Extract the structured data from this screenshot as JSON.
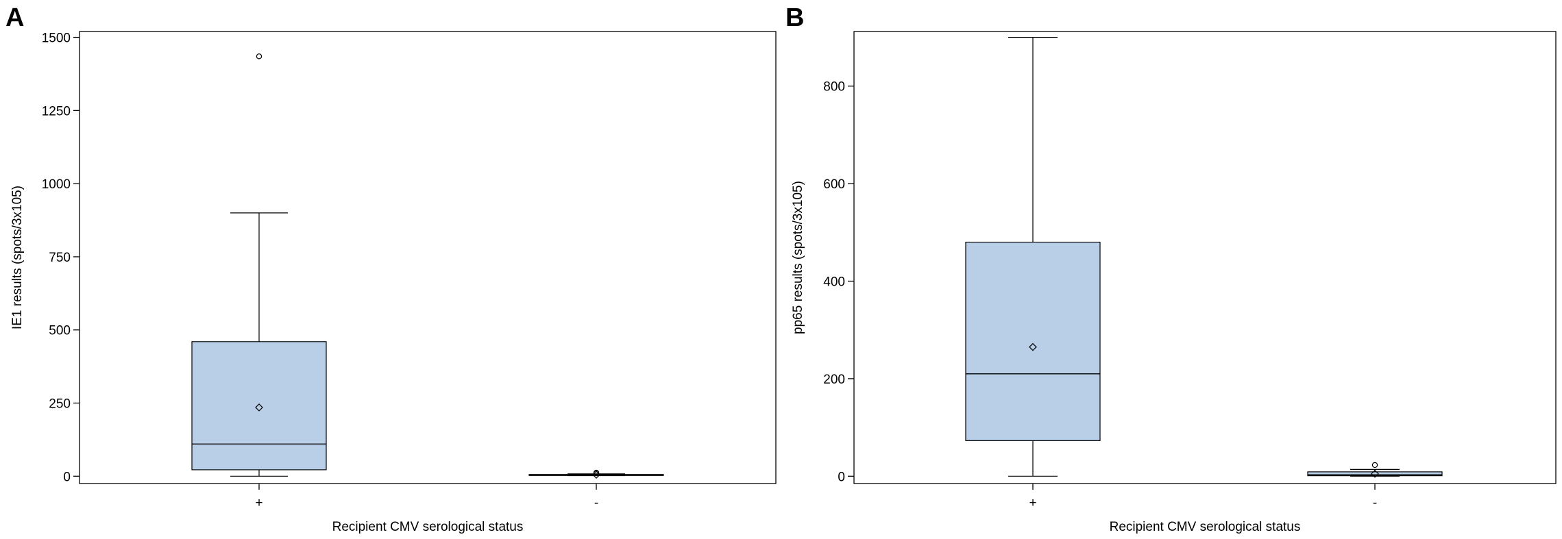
{
  "colors": {
    "box_fill": "#b9cfe8",
    "stroke": "#000000",
    "background": "#ffffff"
  },
  "chart_data": [
    {
      "panel": "A",
      "type": "box",
      "xlabel": "Recipient CMV serological status",
      "ylabel": "IE1 results (spots/3x105)",
      "ylim": [
        -25,
        1520
      ],
      "yticks": [
        0,
        250,
        500,
        750,
        1000,
        1250,
        1500
      ],
      "yticklabels": [
        "0",
        "250",
        "500",
        "750",
        "1000",
        "1250",
        "1500"
      ],
      "categories": [
        "+",
        "-"
      ],
      "boxes": [
        {
          "category": "+",
          "whisker_low": 0,
          "q1": 22,
          "median": 110,
          "q3": 460,
          "whisker_high": 900,
          "mean": 235,
          "outliers": [
            1435
          ]
        },
        {
          "category": "-",
          "whisker_low": 2,
          "q1": 3,
          "median": 5,
          "q3": 6,
          "whisker_high": 8,
          "mean": 5,
          "outliers": [
            10,
            12
          ]
        }
      ]
    },
    {
      "panel": "B",
      "type": "box",
      "xlabel": "Recipient CMV serological status",
      "ylabel": "pp65 results (spots/3x105)",
      "ylim": [
        -15,
        912
      ],
      "yticks": [
        0,
        200,
        400,
        600,
        800
      ],
      "yticklabels": [
        "0",
        "200",
        "400",
        "600",
        "800"
      ],
      "categories": [
        "+",
        "-"
      ],
      "boxes": [
        {
          "category": "+",
          "whisker_low": 0,
          "q1": 73,
          "median": 210,
          "q3": 480,
          "whisker_high": 900,
          "mean": 265,
          "outliers": []
        },
        {
          "category": "-",
          "whisker_low": 0,
          "q1": 1,
          "median": 3,
          "q3": 9,
          "whisker_high": 14,
          "mean": 5,
          "outliers": [
            23
          ]
        }
      ]
    }
  ]
}
